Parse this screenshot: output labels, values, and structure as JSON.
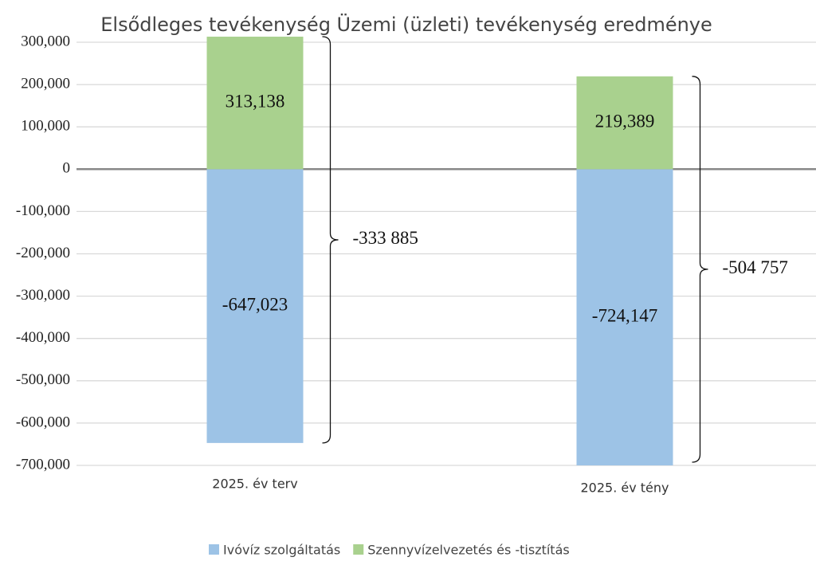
{
  "chart_data": {
    "type": "bar",
    "stacked": true,
    "title": "Elsődleges tevékenység Üzemi (üzleti) tevékenység eredménye",
    "categories": [
      "2025. év terv",
      "2025. év tény"
    ],
    "series": [
      {
        "name": "Ivóvíz szolgáltatás",
        "color": "#9dc3e6",
        "values": [
          -647023,
          -724147
        ],
        "value_labels": [
          "-647,023",
          "-724,147"
        ]
      },
      {
        "name": "Szennyvízelvezetés és -tisztítás",
        "color": "#a9d18e",
        "values": [
          313138,
          219389
        ],
        "value_labels": [
          "313,138",
          "219,389"
        ]
      }
    ],
    "annotations": [
      "-333 885",
      "-504 757"
    ],
    "ylim": [
      -700000,
      300000
    ],
    "yticks": [
      {
        "value": -700000,
        "label": "-700,000"
      },
      {
        "value": -600000,
        "label": "-600,000"
      },
      {
        "value": -500000,
        "label": "-500,000"
      },
      {
        "value": -400000,
        "label": "-400,000"
      },
      {
        "value": -300000,
        "label": "-300,000"
      },
      {
        "value": -200000,
        "label": "-200,000"
      },
      {
        "value": -100000,
        "label": "-100,000"
      },
      0,
      {
        "value": 100000,
        "label": "100,000"
      },
      {
        "value": 200000,
        "label": "200,000"
      },
      {
        "value": 300000,
        "label": "300,000"
      }
    ],
    "grid": true,
    "legend": "bottom"
  }
}
